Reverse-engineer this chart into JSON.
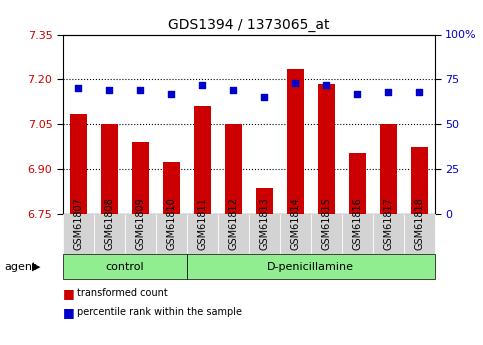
{
  "title": "GDS1394 / 1373065_at",
  "samples": [
    "GSM61807",
    "GSM61808",
    "GSM61809",
    "GSM61810",
    "GSM61811",
    "GSM61812",
    "GSM61813",
    "GSM61814",
    "GSM61815",
    "GSM61816",
    "GSM61817",
    "GSM61818"
  ],
  "transformed_count": [
    7.085,
    7.05,
    6.99,
    6.925,
    7.11,
    7.05,
    6.835,
    7.235,
    7.185,
    6.955,
    7.05,
    6.975
  ],
  "percentile_rank": [
    70,
    69,
    69,
    67,
    72,
    69,
    65,
    73,
    72,
    67,
    68,
    68
  ],
  "ylim_left": [
    6.75,
    7.35
  ],
  "ylim_right": [
    0,
    100
  ],
  "yticks_left": [
    6.75,
    6.9,
    7.05,
    7.2,
    7.35
  ],
  "yticks_right": [
    0,
    25,
    50,
    75,
    100
  ],
  "bar_color": "#cc0000",
  "dot_color": "#0000cc",
  "background_color": "#ffffff",
  "tick_label_color_left": "#cc0000",
  "tick_label_color_right": "#0000cc",
  "xtick_bg_color": "#d3d3d3",
  "group_bg_color": "#90ee90",
  "agent_label": "agent",
  "control_label": "control",
  "dpen_label": "D-penicillamine",
  "legend_bar": "transformed count",
  "legend_dot": "percentile rank within the sample",
  "control_count": 4,
  "total_count": 12,
  "grid_color": "black",
  "grid_linestyle": "dotted",
  "grid_linewidth": 0.8,
  "title_fontsize": 10,
  "axis_fontsize": 8,
  "xtick_fontsize": 7,
  "legend_fontsize": 8
}
